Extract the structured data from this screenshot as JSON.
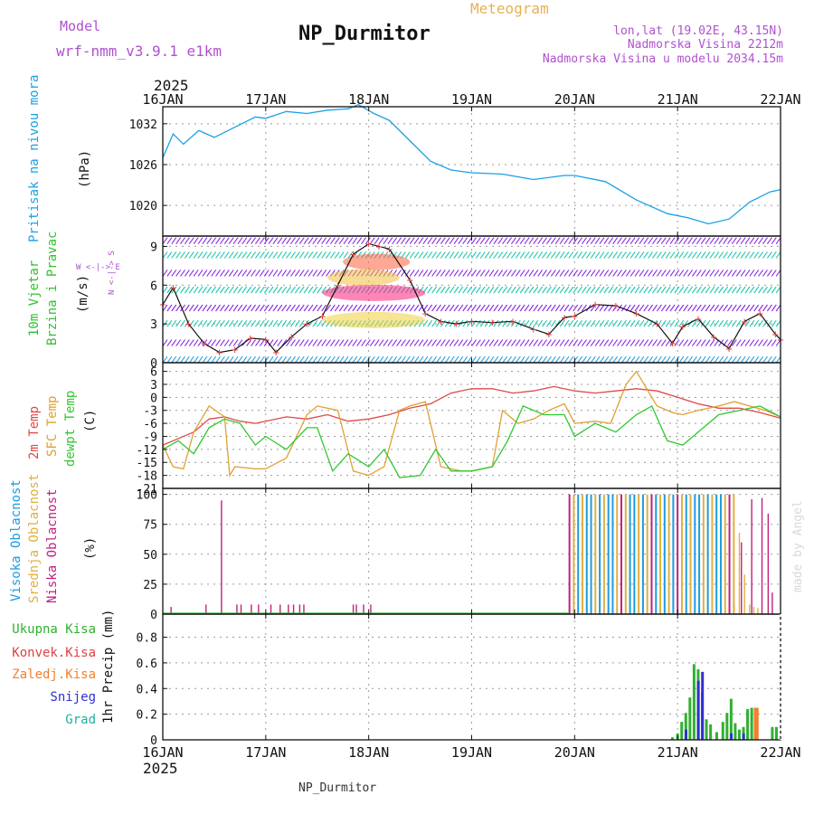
{
  "header": {
    "model_label": "Model",
    "model_name": "wrf-nmm_v3.9.1 e1km",
    "title": "NP_Durmitor",
    "subtitle": "Meteogram",
    "lonlat": "lon,lat (19.02E, 43.15N)",
    "altitude": "Nadmorska Visina 2212m",
    "model_altitude": "Nadmorska Visina u modelu 2034.15m",
    "year_top": "2025",
    "year_bottom": "2025",
    "footer_station": "NP_Durmitor",
    "credit": "made by Angel"
  },
  "time_axis": {
    "ticks": [
      "16JAN",
      "17JAN",
      "18JAN",
      "19JAN",
      "20JAN",
      "21JAN",
      "22JAN"
    ],
    "range_days": [
      0,
      6
    ]
  },
  "panel_labels": {
    "pressure": {
      "lines": [
        "Pritisak na nivou mora"
      ],
      "unit": "(hPa)"
    },
    "wind": {
      "lines": [
        "10m Vjetar",
        "Brzina i Pravac"
      ],
      "unit": "(m/s)",
      "compass_ns": "N <-|-> S",
      "compass_we": "W <-|-> E"
    },
    "temp": {
      "lines": [
        "2m Temp",
        "SFC Temp",
        "dewpt Temp"
      ],
      "unit": "(C)"
    },
    "cloud": {
      "lines": [
        "Visoka Oblacnost",
        "Srednja Oblacnost",
        "Niska Oblacnost"
      ],
      "unit": "(%)"
    },
    "precip": {
      "lines": [
        "Ukupna Kisa",
        "Konvek.Kisa",
        "Zaledj.Kisa",
        "Snijeg",
        "Grad"
      ],
      "unit": "1hr Precip (mm)"
    }
  },
  "colors": {
    "pressure": "#1aa0e6",
    "temp2m": "#e04848",
    "sfc": "#e0a030",
    "dewpt": "#30c830",
    "cloud_high": "#1e9be0",
    "cloud_mid": "#e0b040",
    "cloud_low": "#c02080",
    "precip_total": "#30b030",
    "precip_conv": "#e04040",
    "precip_frz": "#f08030",
    "precip_snow": "#3030d0",
    "precip_grad": "#20b0a0",
    "label_purple": "#b050d0",
    "title_orange": "#e8b050"
  },
  "chart_data": [
    {
      "type": "line",
      "name": "pressure",
      "ylabel": "(hPa)",
      "yticks": [
        1020,
        1026,
        1032
      ],
      "ylim": [
        1015.5,
        1034.5
      ],
      "x": [
        0,
        0.1,
        0.2,
        0.35,
        0.5,
        0.7,
        0.9,
        1.0,
        1.2,
        1.4,
        1.6,
        1.8,
        1.9,
        2.05,
        2.2,
        2.4,
        2.6,
        2.8,
        3.0,
        3.3,
        3.6,
        3.9,
        4.0,
        4.3,
        4.6,
        4.9,
        5.1,
        5.3,
        5.5,
        5.7,
        5.9,
        6.0
      ],
      "values": [
        1027,
        1030.5,
        1029,
        1031,
        1030,
        1031.5,
        1033,
        1032.8,
        1033.8,
        1033.5,
        1034,
        1034.2,
        1034.8,
        1033.5,
        1032.5,
        1029.5,
        1026.5,
        1025.2,
        1024.8,
        1024.6,
        1023.8,
        1024.4,
        1024.4,
        1023.5,
        1020.8,
        1018.8,
        1018.2,
        1017.3,
        1018.0,
        1020.5,
        1022.0,
        1022.3
      ]
    },
    {
      "type": "line",
      "name": "wind_speed",
      "ylabel": "(m/s)",
      "yticks": [
        0,
        3,
        6,
        9
      ],
      "ylim": [
        0,
        9.8
      ],
      "x": [
        0,
        0.1,
        0.25,
        0.4,
        0.55,
        0.7,
        0.85,
        1.0,
        1.1,
        1.25,
        1.4,
        1.55,
        1.7,
        1.85,
        2.0,
        2.1,
        2.2,
        2.4,
        2.55,
        2.7,
        2.85,
        3.0,
        3.2,
        3.4,
        3.6,
        3.75,
        3.9,
        4.0,
        4.2,
        4.4,
        4.6,
        4.8,
        4.95,
        5.05,
        5.2,
        5.35,
        5.5,
        5.65,
        5.8,
        5.95,
        6.0
      ],
      "values": [
        4.5,
        5.8,
        3.0,
        1.5,
        0.8,
        1.0,
        1.9,
        1.8,
        0.8,
        2.0,
        3.0,
        3.6,
        6.0,
        8.4,
        9.2,
        9.0,
        8.8,
        6.4,
        3.8,
        3.2,
        3.0,
        3.2,
        3.1,
        3.2,
        2.6,
        2.2,
        3.5,
        3.6,
        4.5,
        4.4,
        3.8,
        3.0,
        1.5,
        2.8,
        3.4,
        2.0,
        1.1,
        3.2,
        3.8,
        2.2,
        1.8
      ]
    },
    {
      "type": "line",
      "ylabel": "(C)",
      "yticks": [
        -21,
        -18,
        -15,
        -12,
        -9,
        -6,
        -3,
        0,
        3,
        6
      ],
      "ylim": [
        -21,
        8
      ],
      "series": [
        {
          "name": "2m Temp",
          "x": [
            0,
            0.1,
            0.3,
            0.45,
            0.6,
            0.75,
            0.9,
            1.0,
            1.2,
            1.4,
            1.6,
            1.8,
            2.0,
            2.2,
            2.4,
            2.6,
            2.8,
            3.0,
            3.2,
            3.4,
            3.6,
            3.8,
            4.0,
            4.2,
            4.4,
            4.6,
            4.8,
            5.0,
            5.2,
            5.4,
            5.6,
            5.8,
            6.0
          ],
          "values": [
            -11,
            -10,
            -8,
            -5,
            -4.5,
            -5.5,
            -6,
            -5.5,
            -4.5,
            -5,
            -4,
            -5.5,
            -5,
            -4,
            -2.5,
            -1.5,
            1,
            2,
            2,
            1,
            1.5,
            2.5,
            1.5,
            1,
            1.5,
            2,
            1.5,
            0,
            -1.5,
            -2.5,
            -2.5,
            -3.5,
            -4.8
          ]
        },
        {
          "name": "SFC Temp",
          "x": [
            0,
            0.1,
            0.2,
            0.3,
            0.45,
            0.6,
            0.65,
            0.7,
            0.9,
            1.0,
            1.2,
            1.4,
            1.5,
            1.7,
            1.85,
            2.0,
            2.15,
            2.3,
            2.4,
            2.55,
            2.7,
            2.9,
            3.0,
            3.2,
            3.3,
            3.45,
            3.6,
            3.75,
            3.9,
            4.0,
            4.2,
            4.35,
            4.5,
            4.6,
            4.8,
            4.95,
            5.05,
            5.2,
            5.4,
            5.55,
            5.7,
            5.85,
            6.0
          ],
          "values": [
            -11,
            -16,
            -16.5,
            -8,
            -2,
            -4.5,
            -18,
            -16,
            -16.5,
            -16.5,
            -14,
            -4,
            -2,
            -3,
            -17,
            -18,
            -16,
            -3,
            -2,
            -1,
            -16,
            -17,
            -17,
            -16,
            -3,
            -6,
            -5,
            -3,
            -1.5,
            -6,
            -5.5,
            -6,
            3,
            6,
            -2,
            -3.5,
            -4,
            -3,
            -2,
            -1,
            -2,
            -3,
            -4.5
          ]
        },
        {
          "name": "dewpt Temp",
          "x": [
            0,
            0.15,
            0.3,
            0.45,
            0.6,
            0.75,
            0.9,
            1.0,
            1.2,
            1.4,
            1.5,
            1.65,
            1.8,
            2.0,
            2.15,
            2.3,
            2.5,
            2.65,
            2.8,
            3.0,
            3.2,
            3.35,
            3.5,
            3.7,
            3.9,
            4.0,
            4.2,
            4.4,
            4.6,
            4.75,
            4.9,
            5.05,
            5.2,
            5.4,
            5.6,
            5.8,
            6.0
          ],
          "values": [
            -12,
            -10,
            -13,
            -7,
            -5,
            -6,
            -11,
            -9,
            -12,
            -7,
            -7,
            -17,
            -13,
            -16,
            -12,
            -18.5,
            -18,
            -12,
            -17,
            -17,
            -16,
            -10,
            -2,
            -4,
            -4,
            -9,
            -6,
            -8,
            -4,
            -2,
            -10,
            -11,
            -8,
            -4,
            -3,
            -2,
            -4.5
          ]
        }
      ]
    },
    {
      "type": "bar",
      "name": "cloud",
      "ylabel": "(%)",
      "yticks": [
        0,
        25,
        50,
        75,
        100
      ],
      "ylim": [
        0,
        105
      ],
      "series": [
        {
          "name": "Niska Oblacnost",
          "x": [
            0.08,
            0.42,
            0.57,
            0.72,
            0.76,
            0.86,
            0.93,
            1.05,
            1.14,
            1.22,
            1.27,
            1.33,
            1.37,
            1.85,
            1.88,
            1.95,
            2.02,
            5.62,
            5.72,
            5.82,
            5.88,
            5.92
          ],
          "values": [
            6,
            8,
            95,
            8,
            8,
            8,
            8,
            8,
            8,
            8,
            8,
            8,
            8,
            8,
            8,
            8,
            8,
            60,
            96,
            97,
            84,
            18
          ]
        },
        {
          "name": "Srednja Oblacnost",
          "x": [
            5.55,
            5.6,
            5.65,
            5.7,
            5.74,
            5.78
          ],
          "values": [
            10,
            68,
            33,
            8,
            6,
            5
          ]
        }
      ]
    },
    {
      "type": "bar",
      "name": "precip",
      "ylabel": "1hr Precip (mm)",
      "yticks": [
        0,
        0.2,
        0.4,
        0.6,
        0.8
      ],
      "ylim": [
        0,
        0.98
      ],
      "series": [
        {
          "name": "Ukupna Kisa",
          "x": [
            4.95,
            5.0,
            5.04,
            5.08,
            5.12,
            5.16,
            5.2,
            5.24,
            5.28,
            5.32,
            5.38,
            5.44,
            5.48,
            5.52,
            5.56,
            5.6,
            5.64,
            5.68,
            5.72,
            5.76,
            5.92,
            5.96
          ],
          "values": [
            0.02,
            0.05,
            0.14,
            0.21,
            0.33,
            0.59,
            0.55,
            0.37,
            0.16,
            0.12,
            0.06,
            0.14,
            0.21,
            0.32,
            0.13,
            0.08,
            0.1,
            0.24,
            0.25,
            0.05,
            0.1,
            0.1
          ]
        },
        {
          "name": "Snijeg",
          "x": [
            5.06,
            5.18,
            5.22,
            5.5,
            5.62
          ],
          "values": [
            0.08,
            0.46,
            0.53,
            0.05,
            0.05
          ]
        },
        {
          "name": "Zaledj.Kisa",
          "x": [
            5.71,
            5.73
          ],
          "values": [
            0.25,
            0.25
          ]
        }
      ]
    }
  ]
}
